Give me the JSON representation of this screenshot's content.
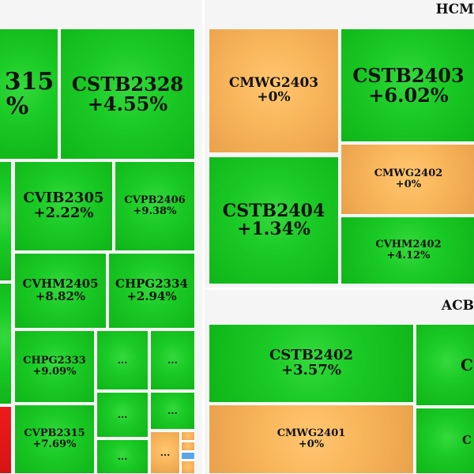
{
  "panels": {
    "hcm": {
      "title": "HCM"
    },
    "acb": {
      "title": "ACB"
    }
  },
  "tiles": {
    "left_hero_code": "315",
    "left_hero_chg": "%",
    "cstb2328_code": "CSTB2328",
    "cstb2328_chg": "+4.55%",
    "cvib2305_code": "CVIB2305",
    "cvib2305_chg": "+2.22%",
    "cvpb2406_code": "CVPB2406",
    "cvpb2406_chg": "+9.38%",
    "cvhm2405_code": "CVHM2405",
    "cvhm2405_chg": "+8.82%",
    "chpg2334_code": "CHPG2334",
    "chpg2334_chg": "+2.94%",
    "chpg2333_code": "CHPG2333",
    "chpg2333_chg": "+9.09%",
    "cvpb2315_code": "CVPB2315",
    "cvpb2315_chg": "+7.69%",
    "dots": "...",
    "cmwg2403_code": "CMWG2403",
    "cmwg2403_chg": "+0%",
    "cstb2403_code": "CSTB2403",
    "cstb2403_chg": "+6.02%",
    "cmwg2402_code": "CMWG2402",
    "cmwg2402_chg": "+0%",
    "cstb2404_code": "CSTB2404",
    "cstb2404_chg": "+1.34%",
    "cvhm2402_code": "CVHM2402",
    "cvhm2402_chg": "+4.12%",
    "cstb2402_code": "CSTB2402",
    "cstb2402_chg": "+3.57%",
    "cmwg2401_code": "CMWG2401",
    "cmwg2401_chg": "+0%",
    "right_partial_c1": "C",
    "right_partial_c2": "C"
  },
  "colors": {
    "up": "#1bcb26",
    "flat": "#f9b65b",
    "down": "#e31616",
    "other": "#57a7ea"
  }
}
